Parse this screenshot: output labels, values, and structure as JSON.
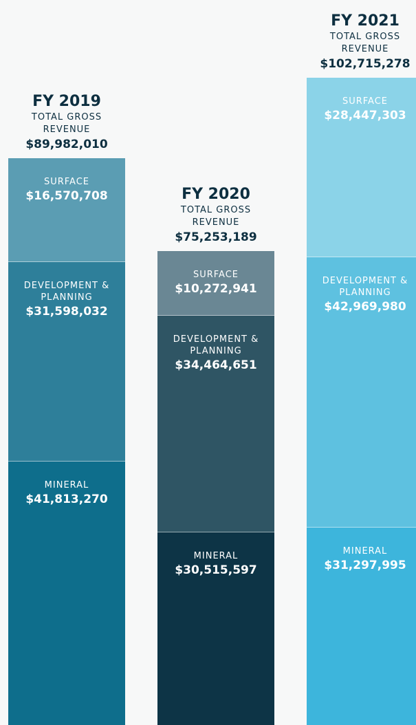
{
  "chart_data": {
    "type": "stacked-bar",
    "categories": [
      "FY 2019",
      "FY 2020",
      "FY 2021"
    ],
    "total_label": "TOTAL GROSS REVENUE",
    "totals": [
      89982010,
      75253189,
      102715278
    ],
    "total_labels": [
      "$89,982,010",
      "$75,253,189",
      "$102,715,278"
    ],
    "series": [
      {
        "name": "SURFACE",
        "color": [
          "#5b9db3",
          "#6a8794",
          "#8bd3e8"
        ],
        "values": [
          16570708,
          10272941,
          28447303
        ],
        "value_labels": [
          "$16,570,708",
          "$10,272,941",
          "$28,447,303"
        ]
      },
      {
        "name": "DEVELOPMENT & PLANNING",
        "color": [
          "#2e7f9a",
          "#2f5564",
          "#5ec1e0"
        ],
        "values": [
          31598032,
          34464651,
          42969980
        ],
        "value_labels": [
          "$31,598,032",
          "$34,464,651",
          "$42,969,980"
        ]
      },
      {
        "name": "MINERAL",
        "color": [
          "#0e6e8c",
          "#0d3446",
          "#3db5dc"
        ],
        "values": [
          41813270,
          30515597,
          31297995
        ],
        "value_labels": [
          "$41,813,270",
          "$30,515,597",
          "$31,297,995"
        ]
      }
    ]
  }
}
